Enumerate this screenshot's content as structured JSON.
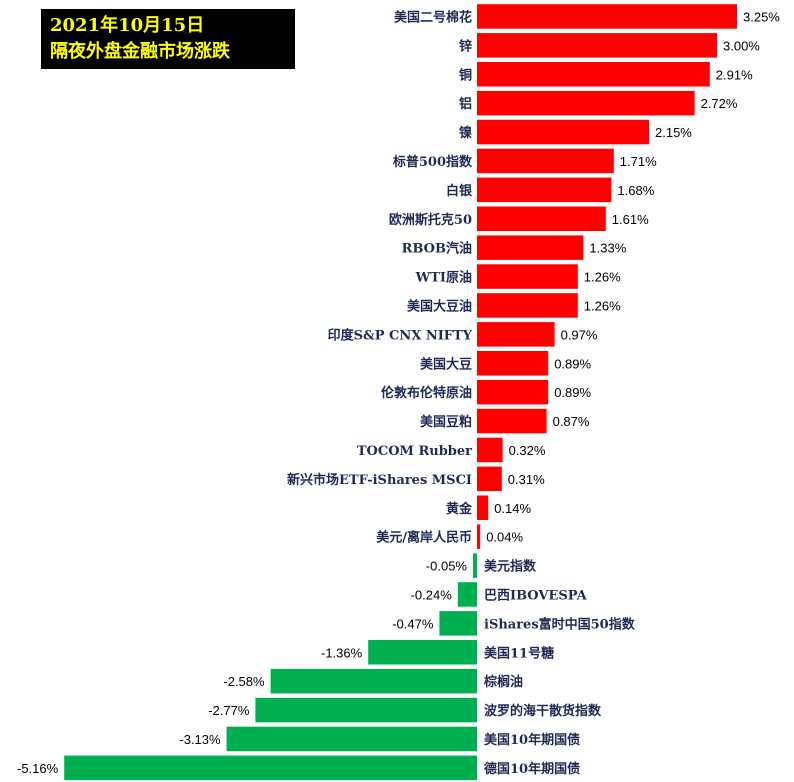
{
  "title": {
    "line1": "2021年10月15日",
    "line2": "隔夜外盘金融市场涨跌"
  },
  "colors": {
    "positive": "#ff0000",
    "negative": "#00b050",
    "title_bg": "#000000",
    "title_text": "#ffff00"
  },
  "chart_data": {
    "type": "bar",
    "orientation": "horizontal",
    "unit": "%",
    "categories": [
      "美国二号棉花",
      "锌",
      "铜",
      "铝",
      "镍",
      "标普500指数",
      "白银",
      "欧洲斯托克50",
      "RBOB汽油",
      "WTI原油",
      "美国大豆油",
      "印度S&P CNX NIFTY",
      "美国大豆",
      "伦敦布伦特原油",
      "美国豆粕",
      "TOCOM Rubber",
      "新兴市场ETF-iShares MSCI",
      "黄金",
      "美元/离岸人民币",
      "美元指数",
      "巴西IBOVESPA",
      "iShares富时中国50指数",
      "美国11号糖",
      "棕榈油",
      "波罗的海干散货指数",
      "美国10年期国债",
      "德国10年期国债"
    ],
    "values": [
      3.25,
      3.0,
      2.91,
      2.72,
      2.15,
      1.71,
      1.68,
      1.61,
      1.33,
      1.26,
      1.26,
      0.97,
      0.89,
      0.89,
      0.87,
      0.32,
      0.31,
      0.14,
      0.04,
      -0.05,
      -0.24,
      -0.47,
      -1.36,
      -2.58,
      -2.77,
      -3.13,
      -5.16
    ],
    "value_labels": [
      "3.25%",
      "3.00%",
      "2.91%",
      "2.72%",
      "2.15%",
      "1.71%",
      "1.68%",
      "1.61%",
      "1.33%",
      "1.26%",
      "1.26%",
      "0.97%",
      "0.89%",
      "0.89%",
      "0.87%",
      "0.32%",
      "0.31%",
      "0.14%",
      "0.04%",
      "-0.05%",
      "-0.24%",
      "-0.47%",
      "-1.36%",
      "-2.58%",
      "-2.77%",
      "-3.13%",
      "-5.16%"
    ],
    "xlim": [
      -5.16,
      3.25
    ],
    "grid": false,
    "legend": "none"
  }
}
